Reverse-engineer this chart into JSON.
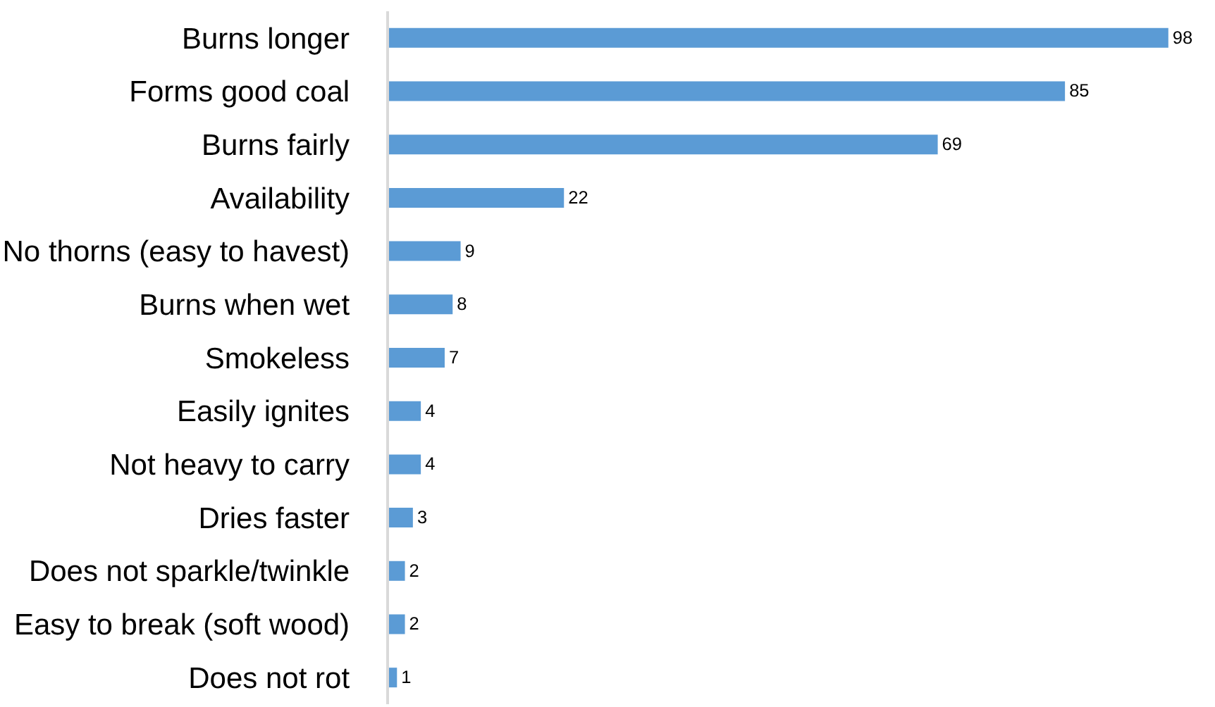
{
  "chart_data": {
    "type": "bar",
    "orientation": "horizontal",
    "categories": [
      "Burns longer",
      "Forms good coal",
      "Burns fairly",
      "Availability",
      "No thorns (easy to havest)",
      "Burns when wet",
      "Smokeless",
      "Easily ignites",
      "Not heavy to carry",
      "Dries faster",
      "Does not sparkle/twinkle",
      "Easy to break (soft wood)",
      "Does not rot"
    ],
    "values": [
      98,
      85,
      69,
      22,
      9,
      8,
      7,
      4,
      4,
      3,
      2,
      2,
      1
    ],
    "color": "#5b9bd5",
    "data_labels": true,
    "tick_labels": "y"
  }
}
